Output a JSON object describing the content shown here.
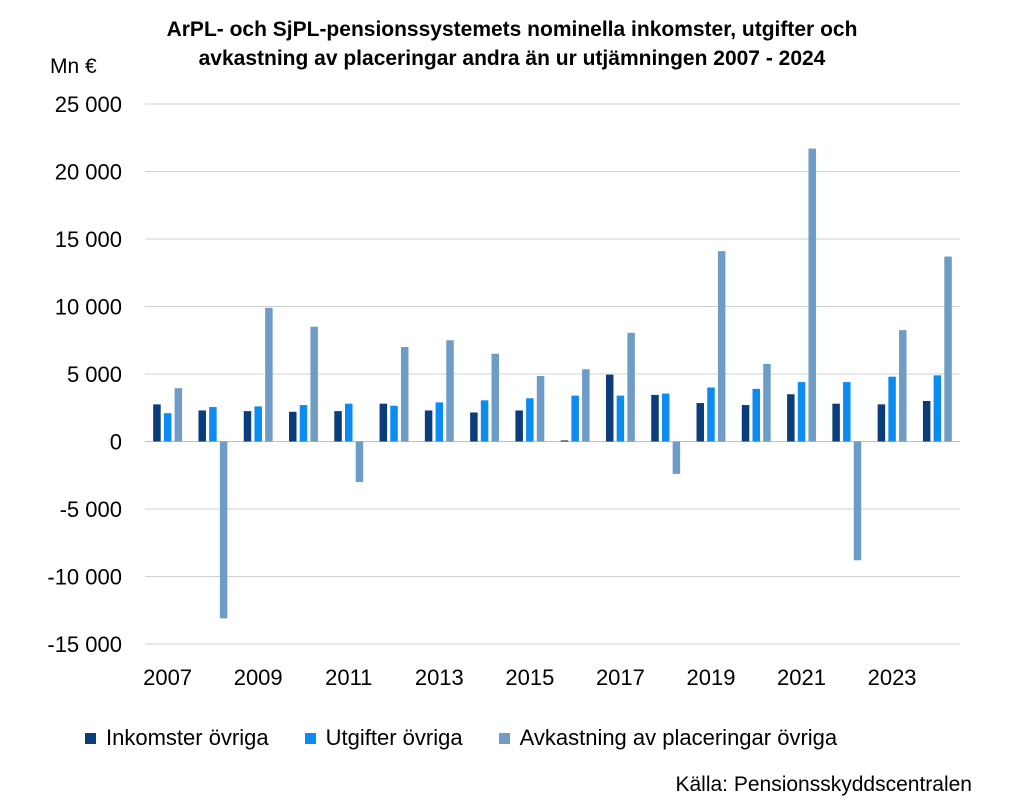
{
  "chart_data": {
    "type": "bar",
    "title": "ArPL- och SjPL-pensionssystemets nominella inkomster, utgifter och avkastning av placeringar andra än ur utjämningen 2007 - 2024",
    "title_lines": [
      "ArPL- och SjPL-pensionssystemets nominella inkomster, utgifter och",
      "avkastning av placeringar andra än ur utjämningen 2007 - 2024"
    ],
    "ylabel": "Mn €",
    "xlabel": "",
    "ylim": [
      -15000,
      25000
    ],
    "yticks": [
      25000,
      20000,
      15000,
      10000,
      5000,
      0,
      -5000,
      -10000,
      -15000
    ],
    "ytick_labels": [
      "25 000",
      "20 000",
      "15 000",
      "10 000",
      "5 000",
      "0",
      "-5 000",
      "-10 000",
      "-15 000"
    ],
    "categories": [
      "2007",
      "2008",
      "2009",
      "2010",
      "2011",
      "2012",
      "2013",
      "2014",
      "2015",
      "2016",
      "2017",
      "2018",
      "2019",
      "2020",
      "2021",
      "2022",
      "2023",
      "2024"
    ],
    "xtick_labels": [
      "2007",
      "",
      "2009",
      "",
      "2011",
      "",
      "2013",
      "",
      "2015",
      "",
      "2017",
      "",
      "2019",
      "",
      "2021",
      "",
      "2023",
      ""
    ],
    "grid": true,
    "legend_position": "bottom",
    "series": [
      {
        "name": "Inkomster övriga",
        "color": "#0B3D7A",
        "values": [
          2750,
          2300,
          2250,
          2200,
          2250,
          2800,
          2300,
          2150,
          2300,
          80,
          4950,
          3450,
          2850,
          2700,
          3500,
          2800,
          2750,
          3000
        ]
      },
      {
        "name": "Utgifter övriga",
        "color": "#0C8CF0",
        "values": [
          2100,
          2550,
          2600,
          2700,
          2800,
          2650,
          2900,
          3050,
          3200,
          3400,
          3400,
          3550,
          4000,
          3900,
          4400,
          4400,
          4800,
          4900
        ]
      },
      {
        "name": "Avkastning av placeringar övriga",
        "color": "#6F9CC7",
        "values": [
          3950,
          -13100,
          9900,
          8500,
          -3000,
          7000,
          7500,
          6500,
          4850,
          5350,
          8050,
          -2400,
          14100,
          5750,
          21700,
          -8800,
          8250,
          13700
        ]
      }
    ],
    "source": "Källa: Pensionsskyddscentralen"
  }
}
